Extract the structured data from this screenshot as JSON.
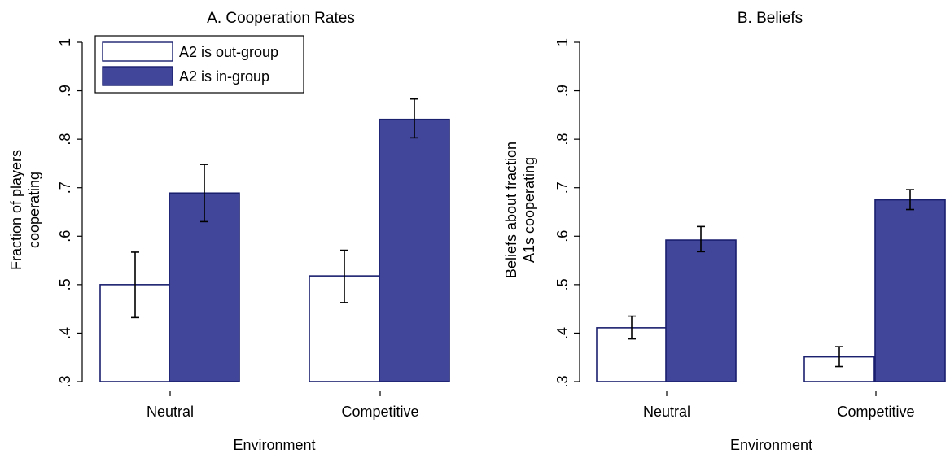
{
  "chart_data": [
    {
      "type": "bar",
      "title": "A. Cooperation Rates",
      "xlabel": "Environment",
      "ylabel": [
        "Fraction of players",
        "cooperating"
      ],
      "categories": [
        "Neutral",
        "Competitive"
      ],
      "ylim": [
        0.3,
        1.0
      ],
      "yticks": [
        0.3,
        0.4,
        0.5,
        0.6,
        0.7,
        0.8,
        0.9,
        1.0
      ],
      "ytick_labels": [
        ".3",
        ".4",
        ".5",
        ".6",
        ".7",
        ".8",
        ".9",
        "1"
      ],
      "legend": {
        "show": true,
        "placement": "top-left"
      },
      "grid": false,
      "series": [
        {
          "name": "A2 is out-group",
          "color": "#ffffff",
          "values": [
            0.5,
            0.518
          ],
          "err_low": [
            0.432,
            0.463
          ],
          "err_high": [
            0.567,
            0.571
          ]
        },
        {
          "name": "A2 is in-group",
          "color": "#42469a",
          "values": [
            0.689,
            0.841
          ],
          "err_low": [
            0.63,
            0.803
          ],
          "err_high": [
            0.748,
            0.883
          ]
        }
      ]
    },
    {
      "type": "bar",
      "title": "B. Beliefs",
      "xlabel": "Environment",
      "ylabel": [
        "Beliefs about fraction",
        "A1s cooperating"
      ],
      "categories": [
        "Neutral",
        "Competitive"
      ],
      "ylim": [
        0.3,
        1.0
      ],
      "yticks": [
        0.3,
        0.4,
        0.5,
        0.6,
        0.7,
        0.8,
        0.9,
        1.0
      ],
      "ytick_labels": [
        ".3",
        ".4",
        ".5",
        ".6",
        ".7",
        ".8",
        ".9",
        "1"
      ],
      "legend": {
        "show": false
      },
      "grid": false,
      "series": [
        {
          "name": "A2 is out-group",
          "color": "#ffffff",
          "values": [
            0.411,
            0.351
          ],
          "err_low": [
            0.388,
            0.331
          ],
          "err_high": [
            0.435,
            0.372
          ]
        },
        {
          "name": "A2 is in-group",
          "color": "#42469a",
          "values": [
            0.592,
            0.675
          ],
          "err_low": [
            0.568,
            0.655
          ],
          "err_high": [
            0.62,
            0.696
          ]
        }
      ]
    }
  ]
}
